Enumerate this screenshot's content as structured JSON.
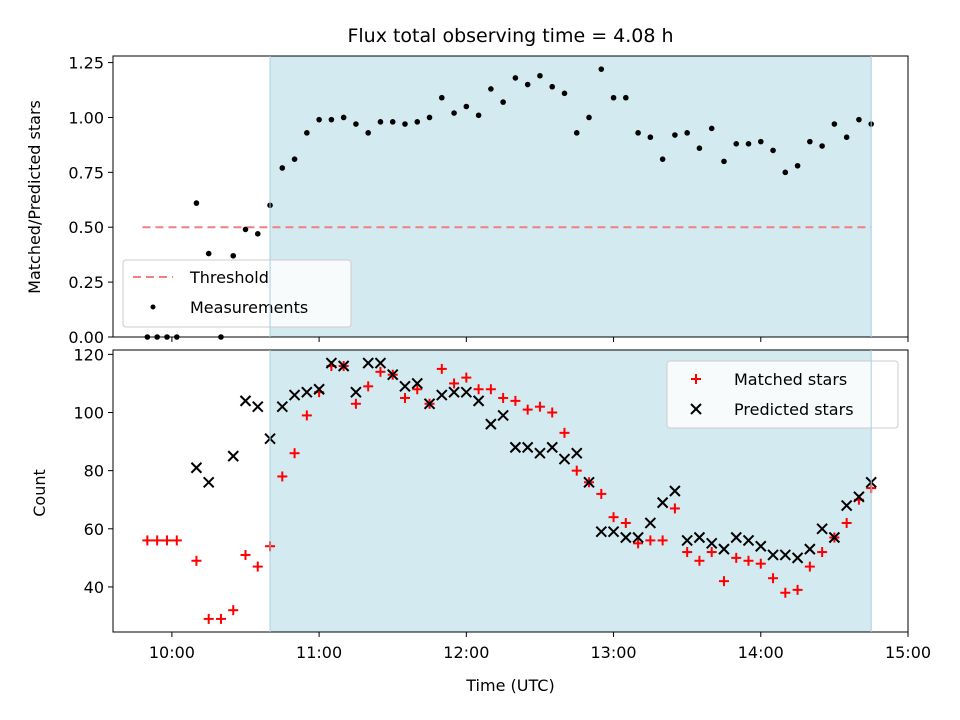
{
  "chart_data": [
    {
      "type": "scatter",
      "panel": "top",
      "title": "Flux total observing time = 4.08 h",
      "xlabel": "",
      "ylabel": "Matched/Predicted stars",
      "xlim": [
        "09:36",
        "15:00"
      ],
      "ylim": [
        0,
        1.28
      ],
      "yticks": [
        "0.00",
        "0.25",
        "0.50",
        "0.75",
        "1.00",
        "1.25"
      ],
      "shaded_span": [
        "10:40",
        "14:45"
      ],
      "shade_color": "#d4eaf1",
      "threshold": {
        "name": "Threshold",
        "value": 0.5,
        "x_range": [
          "09:48",
          "14:45"
        ],
        "color": "#f08080"
      },
      "legend": {
        "position": "lower left",
        "entries": [
          "Threshold",
          "Measurements"
        ]
      },
      "series": [
        {
          "name": "Measurements",
          "color": "#000000",
          "marker": "dot",
          "x": [
            "09:50",
            "09:54",
            "09:58",
            "10:02",
            "10:10",
            "10:15",
            "10:20",
            "10:25",
            "10:30",
            "10:35",
            "10:40",
            "10:45",
            "10:50",
            "10:55",
            "11:00",
            "11:05",
            "11:10",
            "11:15",
            "11:20",
            "11:25",
            "11:30",
            "11:35",
            "11:40",
            "11:45",
            "11:50",
            "11:55",
            "12:00",
            "12:05",
            "12:10",
            "12:15",
            "12:20",
            "12:25",
            "12:30",
            "12:35",
            "12:40",
            "12:45",
            "12:50",
            "12:55",
            "13:00",
            "13:05",
            "13:10",
            "13:15",
            "13:20",
            "13:25",
            "13:30",
            "13:35",
            "13:40",
            "13:45",
            "13:50",
            "13:55",
            "14:00",
            "14:05",
            "14:10",
            "14:15",
            "14:20",
            "14:25",
            "14:30",
            "14:35",
            "14:40",
            "14:45"
          ],
          "y": [
            0.0,
            0.0,
            0.0,
            0.0,
            0.61,
            0.38,
            0.0,
            0.37,
            0.49,
            0.47,
            0.6,
            0.77,
            0.81,
            0.93,
            0.99,
            0.99,
            1.0,
            0.97,
            0.93,
            0.98,
            0.98,
            0.97,
            0.98,
            1.0,
            1.09,
            1.02,
            1.05,
            1.01,
            1.13,
            1.07,
            1.18,
            1.15,
            1.19,
            1.14,
            1.11,
            0.93,
            1.0,
            1.22,
            1.09,
            1.09,
            0.93,
            0.91,
            0.81,
            0.92,
            0.93,
            0.86,
            0.95,
            0.8,
            0.88,
            0.88,
            0.89,
            0.85,
            0.75,
            0.78,
            0.89,
            0.87,
            0.97,
            0.91,
            0.99,
            0.97
          ]
        }
      ]
    },
    {
      "type": "scatter",
      "panel": "bottom",
      "title": "",
      "xlabel": "Time (UTC)",
      "ylabel": "Count",
      "xlim": [
        "09:36",
        "15:00"
      ],
      "xticks": [
        "10:00",
        "11:00",
        "12:00",
        "13:00",
        "14:00",
        "15:00"
      ],
      "ylim": [
        24.5,
        121.5
      ],
      "yticks": [
        "40",
        "60",
        "80",
        "100",
        "120"
      ],
      "shaded_span": [
        "10:40",
        "14:45"
      ],
      "legend": {
        "position": "upper right",
        "entries": [
          "Matched stars",
          "Predicted stars"
        ]
      },
      "series": [
        {
          "name": "Matched stars",
          "color": "#ff0000",
          "marker": "plus",
          "x": [
            "09:50",
            "09:54",
            "09:58",
            "10:02",
            "10:10",
            "10:15",
            "10:20",
            "10:25",
            "10:30",
            "10:35",
            "10:40",
            "10:45",
            "10:50",
            "10:55",
            "11:00",
            "11:05",
            "11:10",
            "11:15",
            "11:20",
            "11:25",
            "11:30",
            "11:35",
            "11:40",
            "11:45",
            "11:50",
            "11:55",
            "12:00",
            "12:05",
            "12:10",
            "12:15",
            "12:20",
            "12:25",
            "12:30",
            "12:35",
            "12:40",
            "12:45",
            "12:50",
            "12:55",
            "13:00",
            "13:05",
            "13:10",
            "13:15",
            "13:20",
            "13:25",
            "13:30",
            "13:35",
            "13:40",
            "13:45",
            "13:50",
            "13:55",
            "14:00",
            "14:05",
            "14:10",
            "14:15",
            "14:20",
            "14:25",
            "14:30",
            "14:35",
            "14:40",
            "14:45"
          ],
          "y": [
            56,
            56,
            56,
            56,
            49,
            29,
            29,
            32,
            51,
            47,
            54,
            78,
            86,
            99,
            107,
            116,
            116,
            103,
            109,
            114,
            113,
            105,
            108,
            103,
            115,
            110,
            112,
            108,
            108,
            105,
            104,
            101,
            102,
            100,
            93,
            80,
            76,
            72,
            64,
            62,
            55,
            56,
            56,
            67,
            52,
            49,
            52,
            42,
            50,
            49,
            48,
            43,
            38,
            39,
            47,
            52,
            57,
            62,
            70,
            74
          ]
        },
        {
          "name": "Predicted stars",
          "color": "#000000",
          "marker": "x",
          "x": [
            "10:10",
            "10:15",
            "10:25",
            "10:30",
            "10:35",
            "10:40",
            "10:45",
            "10:50",
            "10:55",
            "11:00",
            "11:05",
            "11:10",
            "11:15",
            "11:20",
            "11:25",
            "11:30",
            "11:35",
            "11:40",
            "11:45",
            "11:50",
            "11:55",
            "12:00",
            "12:05",
            "12:10",
            "12:15",
            "12:20",
            "12:25",
            "12:30",
            "12:35",
            "12:40",
            "12:45",
            "12:50",
            "12:55",
            "13:00",
            "13:05",
            "13:10",
            "13:15",
            "13:20",
            "13:25",
            "13:30",
            "13:35",
            "13:40",
            "13:45",
            "13:50",
            "13:55",
            "14:00",
            "14:05",
            "14:10",
            "14:15",
            "14:20",
            "14:25",
            "14:30",
            "14:35",
            "14:40",
            "14:45"
          ],
          "y": [
            81,
            76,
            85,
            104,
            102,
            91,
            102,
            106,
            107,
            108,
            117,
            116,
            107,
            117,
            117,
            113,
            109,
            110,
            103,
            106,
            107,
            107,
            104,
            96,
            99,
            88,
            88,
            86,
            88,
            84,
            86,
            76,
            59,
            59,
            57,
            57,
            62,
            69,
            73,
            56,
            57,
            55,
            53,
            57,
            56,
            54,
            51,
            51,
            50,
            53,
            60,
            57,
            68,
            71,
            76
          ]
        }
      ]
    }
  ]
}
